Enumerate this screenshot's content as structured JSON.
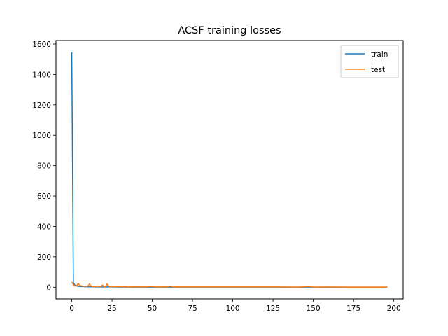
{
  "chart_data": {
    "type": "line",
    "title": "ACSF training losses",
    "xlabel": "",
    "ylabel": "",
    "xlim": [
      -9.8,
      205.8
    ],
    "ylim": [
      -77,
      1623
    ],
    "xticks": [
      0,
      25,
      50,
      75,
      100,
      125,
      150,
      175,
      200
    ],
    "yticks": [
      0,
      200,
      400,
      600,
      800,
      1000,
      1200,
      1400,
      1600
    ],
    "grid": false,
    "legend": {
      "placement": "upper right",
      "entries": [
        "train",
        "test"
      ]
    },
    "series": [
      {
        "name": "train",
        "color": "#1f77b4",
        "x": [
          0,
          1,
          2,
          3,
          4,
          5,
          6,
          7,
          8,
          9,
          10,
          15,
          20,
          25,
          30,
          40,
          50,
          60,
          80,
          100,
          120,
          140,
          160,
          180,
          196
        ],
        "y": [
          1545,
          30,
          12,
          8,
          6,
          5,
          4,
          4,
          3,
          3,
          3,
          2,
          2,
          2,
          1.5,
          1,
          1,
          1,
          1,
          0.8,
          0.8,
          0.7,
          0.6,
          0.6,
          0.5
        ]
      },
      {
        "name": "test",
        "color": "#ff7f0e",
        "x": [
          0,
          1,
          2,
          3,
          4,
          5,
          6,
          7,
          8,
          9,
          10,
          11,
          12,
          13,
          14,
          15,
          16,
          17,
          18,
          19,
          20,
          21,
          22,
          23,
          24,
          25,
          27,
          29,
          31,
          33,
          35,
          40,
          45,
          50,
          52,
          55,
          60,
          61,
          63,
          70,
          80,
          90,
          100,
          110,
          120,
          130,
          140,
          147,
          150,
          160,
          170,
          180,
          190,
          196
        ],
        "y": [
          35,
          15,
          8,
          10,
          25,
          12,
          9,
          6,
          5,
          7,
          5,
          22,
          6,
          4,
          5,
          4,
          3,
          5,
          4,
          14,
          3,
          4,
          22,
          5,
          3,
          4,
          3,
          5,
          3,
          4,
          2,
          3,
          2,
          5,
          2,
          2,
          3,
          8,
          2,
          2,
          2,
          2,
          2,
          2,
          2,
          2,
          1,
          5,
          1,
          2,
          1,
          1,
          1,
          1
        ]
      }
    ]
  }
}
